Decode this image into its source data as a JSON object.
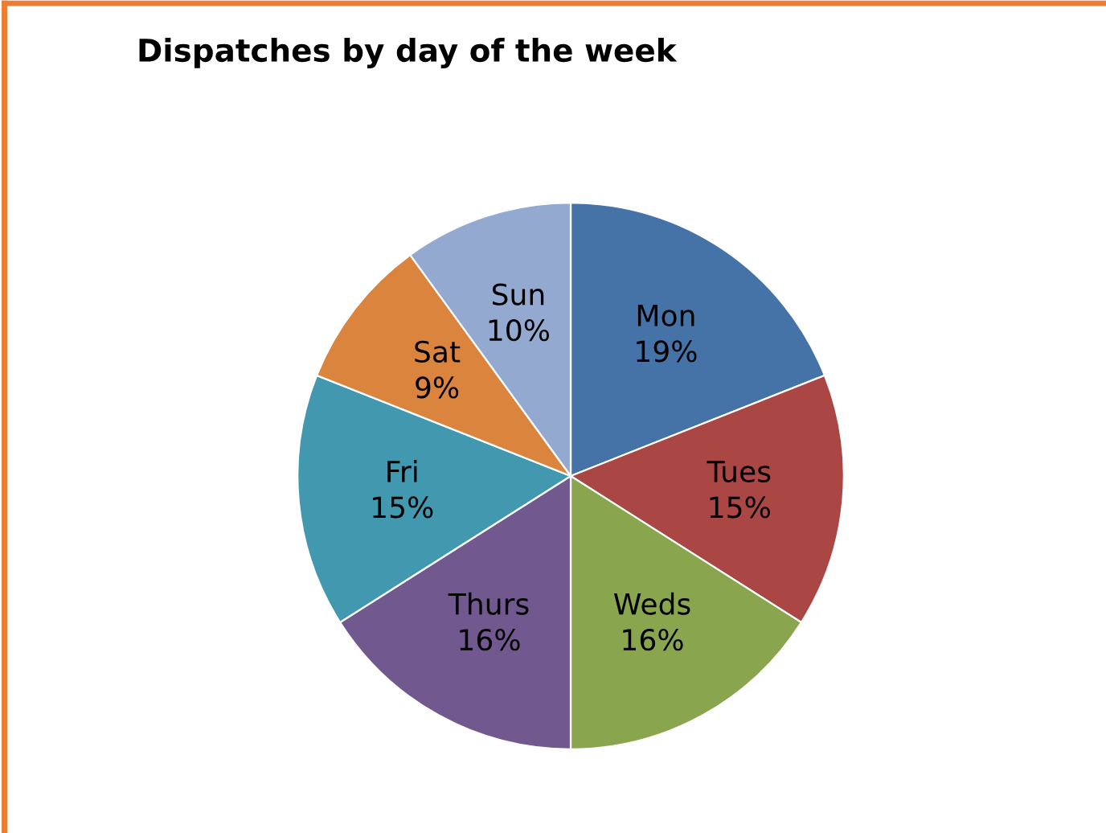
{
  "chart_data": {
    "type": "pie",
    "title": "Dispatches by day of the week",
    "categories": [
      "Mon",
      "Tues",
      "Weds",
      "Thurs",
      "Fri",
      "Sat",
      "Sun"
    ],
    "values": [
      19,
      15,
      16,
      16,
      15,
      9,
      10
    ],
    "value_labels": [
      "19%",
      "15%",
      "16%",
      "16%",
      "15%",
      "9%",
      "10%"
    ],
    "colors": [
      "#4572a7",
      "#aa4643",
      "#89a54e",
      "#71588f",
      "#4198af",
      "#db843d",
      "#93a9cf"
    ],
    "legend": false
  }
}
